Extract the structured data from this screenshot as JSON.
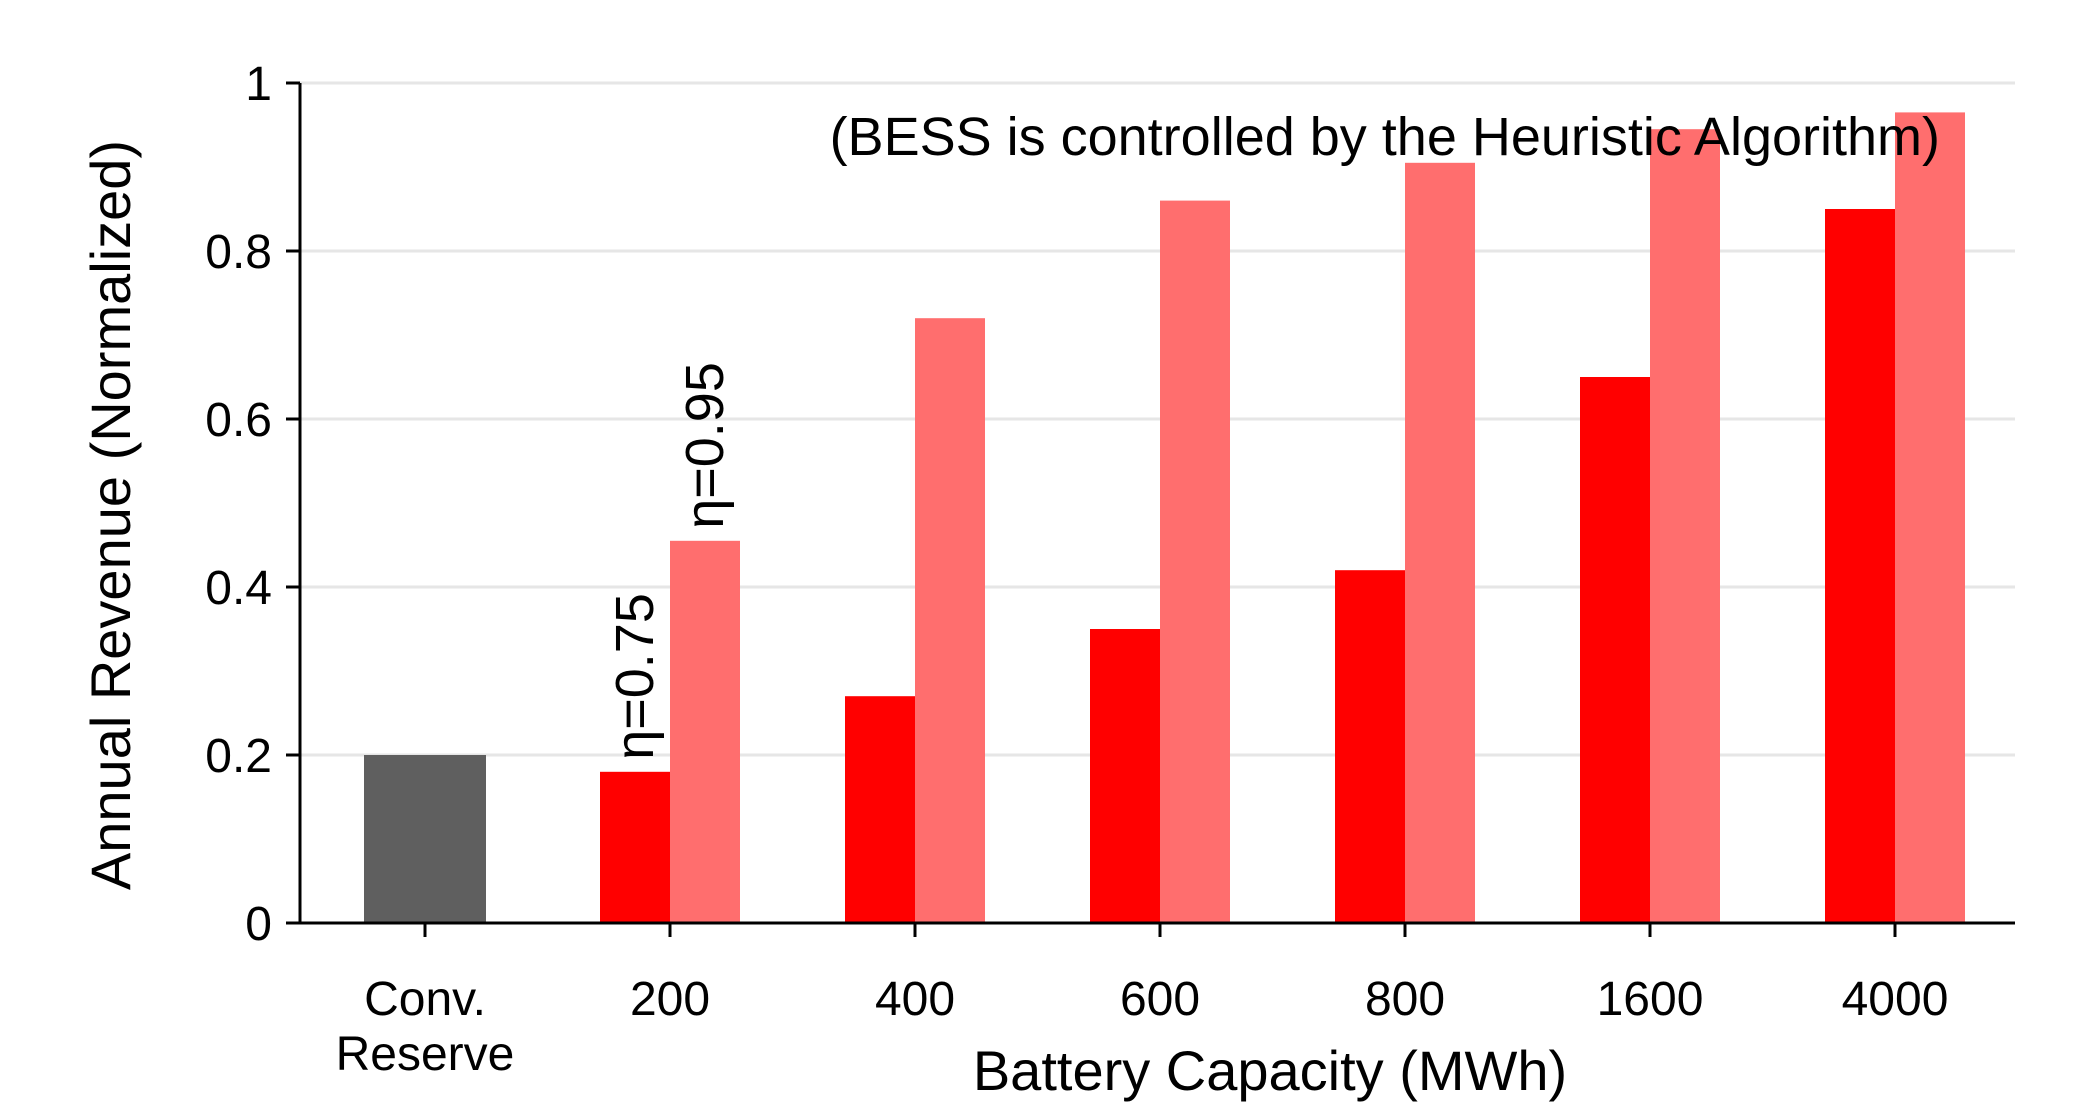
{
  "chart_data": {
    "type": "bar",
    "title": "",
    "annotation": "(BESS is controlled by the Heuristic Algorithm)",
    "xlabel": "Battery Capacity (MWh)",
    "ylabel": "Annual Revenue (Normalized)",
    "ylim": [
      0,
      1
    ],
    "yticks": [
      "0",
      "0.2",
      "0.4",
      "0.6",
      "0.8",
      "1"
    ],
    "categories": [
      [
        "Conv.",
        "Reserve"
      ],
      [
        "200"
      ],
      [
        "400"
      ],
      [
        "600"
      ],
      [
        "800"
      ],
      [
        "1600"
      ],
      [
        "4000"
      ]
    ],
    "grid": "horizontal",
    "reference": {
      "category_index": 0,
      "value": 0.2,
      "color": "#5f5f5f"
    },
    "series": [
      {
        "name": "η=0.75",
        "color": "#ff0000",
        "values": [
          null,
          0.18,
          0.27,
          0.35,
          0.42,
          0.65,
          0.85
        ]
      },
      {
        "name": "η=0.95",
        "color": "#ff6e6e",
        "values": [
          null,
          0.455,
          0.72,
          0.86,
          0.905,
          0.945,
          0.965
        ]
      }
    ],
    "series_labels_on": 1
  }
}
